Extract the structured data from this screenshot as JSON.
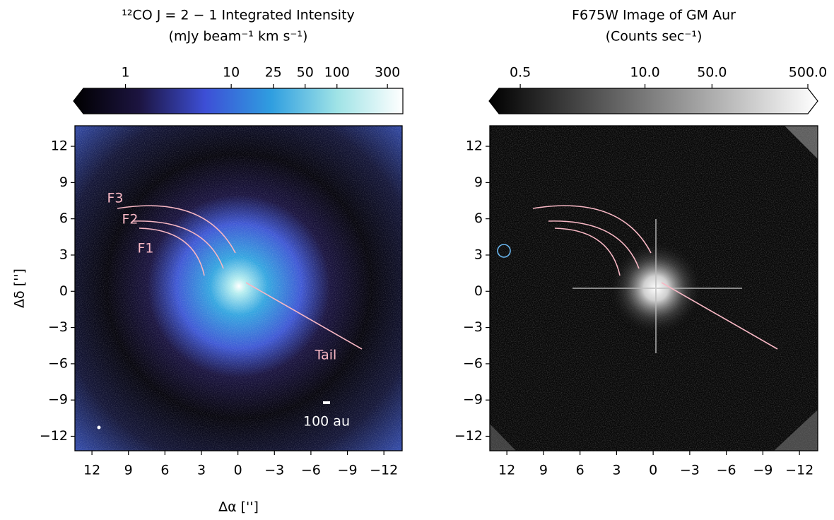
{
  "chart_data": [
    {
      "type": "image",
      "title": [
        "¹²CO J = 2 − 1 Integrated Intensity",
        "(mJy beam⁻¹ km s⁻¹)"
      ],
      "colorbar": {
        "scale": "log",
        "lim": [
          0.4,
          420
        ],
        "extend": "min",
        "ticks": [
          1,
          10,
          25,
          50,
          100,
          300
        ],
        "colors": [
          "#000000",
          "#1c1440",
          "#3d4fd6",
          "#2f9ee0",
          "#9fe3e6",
          "#ffffff"
        ]
      },
      "xlim": [
        13.4,
        -13.5
      ],
      "ylim": [
        -13.2,
        13.7
      ],
      "xticks": [
        12,
        9,
        6,
        3,
        0,
        {
          "value": -3,
          "label": "−3"
        },
        {
          "value": -6,
          "label": "−6"
        },
        {
          "value": -9,
          "label": "−9"
        },
        {
          "value": -12,
          "label": "−12"
        }
      ],
      "yticks": [
        12,
        9,
        6,
        3,
        0,
        {
          "value": -3,
          "label": "−3"
        },
        {
          "value": -6,
          "label": "−6"
        },
        {
          "value": -9,
          "label": "−9"
        },
        {
          "value": -12,
          "label": "−12"
        }
      ],
      "xlabel": "Δα ['']",
      "ylabel": "Δδ ['']",
      "annotations": [
        "F3",
        "F2",
        "F1",
        "Tail"
      ],
      "scalebar_label": "100 au"
    },
    {
      "type": "image",
      "title": [
        "F675W Image of GM Aur",
        "(Counts sec⁻¹)"
      ],
      "colorbar": {
        "scale": "log",
        "lim": [
          0.3,
          500
        ],
        "extend": "both",
        "ticks": [
          0.5,
          {
            "value": 10,
            "label": "10.0"
          },
          {
            "value": 50,
            "label": "50.0"
          },
          {
            "value": 500,
            "label": "500.0"
          }
        ],
        "colors": [
          "#000000",
          "#555555",
          "#aaaaaa",
          "#ffffff"
        ]
      },
      "xlim": [
        13.4,
        -13.5
      ],
      "ylim": [
        -13.2,
        13.7
      ],
      "xticks": [
        12,
        9,
        6,
        3,
        0,
        {
          "value": -3,
          "label": "−3"
        },
        {
          "value": -6,
          "label": "−6"
        },
        {
          "value": -9,
          "label": "−9"
        },
        {
          "value": -12,
          "label": "−12"
        }
      ],
      "yticks": [
        12,
        9,
        6,
        3,
        0,
        {
          "value": -3,
          "label": "−3"
        },
        {
          "value": -6,
          "label": "−6"
        },
        {
          "value": -9,
          "label": "−9"
        },
        {
          "value": -12,
          "label": "−12"
        }
      ]
    }
  ]
}
